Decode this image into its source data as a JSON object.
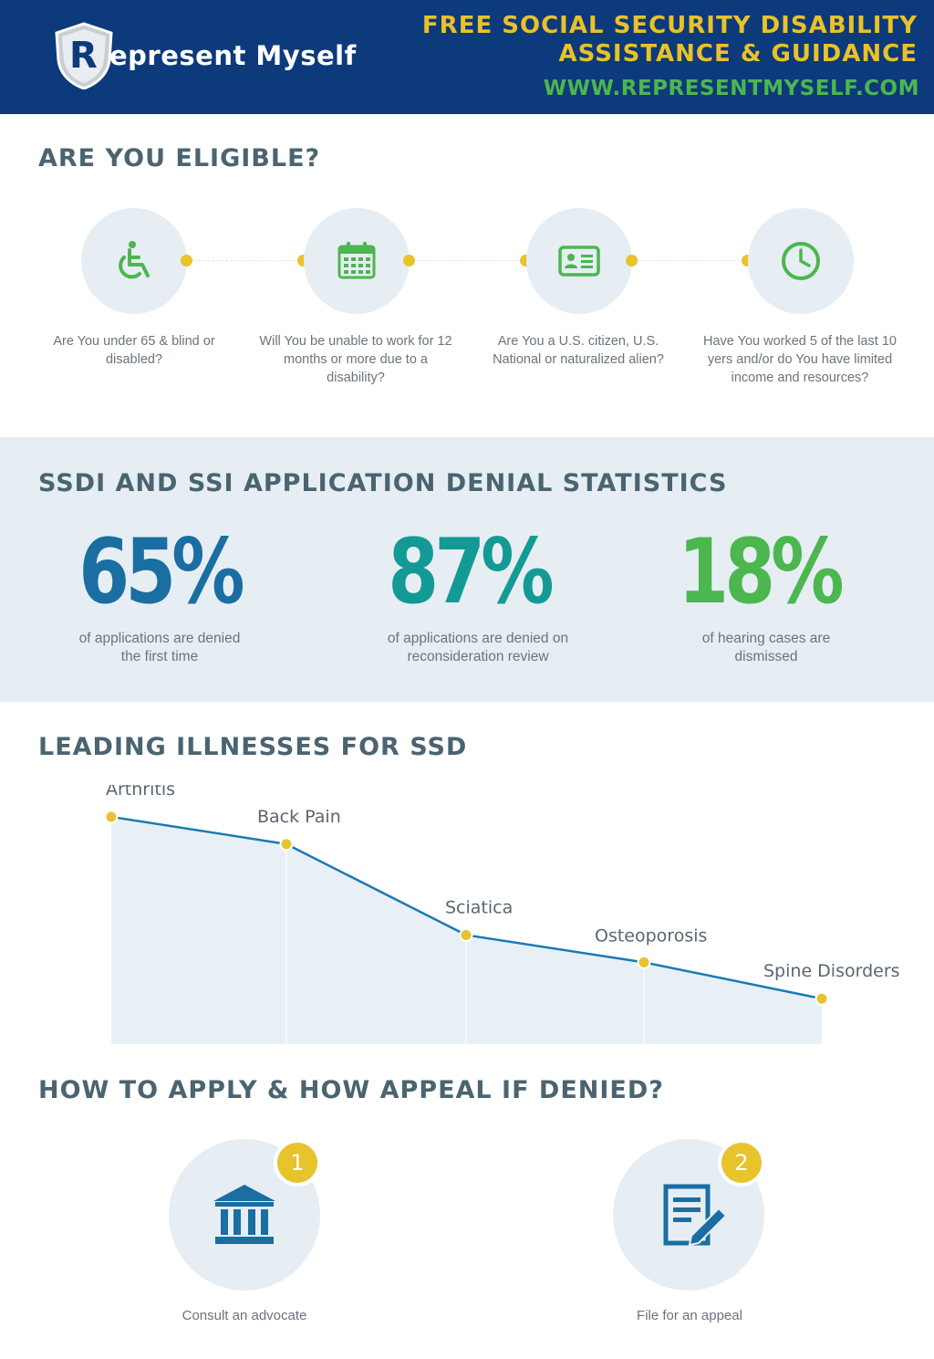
{
  "header": {
    "brand_initial": "R",
    "brand_rest": "epresent Myself",
    "title_line1": "FREE SOCIAL SECURITY DISABILITY",
    "title_line2": "ASSISTANCE & GUIDANCE",
    "url": "WWW.REPRESENTMYSELF.COM",
    "colors": {
      "background": "#0d3a7a",
      "title": "#e9c12a",
      "url": "#4cb64f"
    }
  },
  "eligibility": {
    "title": "ARE YOU ELIGIBLE?",
    "items": [
      {
        "icon": "wheelchair-icon",
        "text": "Are You under 65 & blind or disabled?"
      },
      {
        "icon": "calendar-icon",
        "text": "Will You be unable to work for 12 months or more due to a disability?"
      },
      {
        "icon": "id-card-icon",
        "text": "Are You a U.S. citizen, U.S. National or naturalized alien?"
      },
      {
        "icon": "clock-icon",
        "text": "Have You worked 5 of the last 10 yers and/or do You have limited income and resources?"
      }
    ]
  },
  "stats": {
    "title": "SSDI AND SSI APPLICATION DENIAL STATISTICS",
    "items": [
      {
        "value": "65%",
        "caption_line1": "of applications are denied",
        "caption_line2": "the first time",
        "color": "#1a6ea1"
      },
      {
        "value": "87%",
        "caption_line1": "of applications are denied on",
        "caption_line2": "reconsideration review",
        "color": "#139a94"
      },
      {
        "value": "18%",
        "caption_line1": "of hearing cases are",
        "caption_line2": "dismissed",
        "color": "#4cb64f"
      }
    ]
  },
  "illnesses": {
    "title": "LEADING ILLNESSES FOR SSD"
  },
  "chart_data": {
    "type": "area",
    "title": "LEADING ILLNESSES FOR SSD",
    "categories": [
      "Arthritis",
      "Back Pain",
      "Sciatica",
      "Osteoporosis",
      "Spine Disorders"
    ],
    "values": [
      5,
      4.4,
      2.4,
      1.8,
      1
    ],
    "note_values": "relative ranking, no numeric axis shown",
    "grid": false,
    "colors": {
      "line": "#1a7ab5",
      "fill": "#e8f0f5",
      "point": "#e7c32c"
    }
  },
  "apply": {
    "title": "HOW TO APPLY & HOW APPEAL IF DENIED?",
    "steps": [
      {
        "number": "1",
        "icon": "bank-icon",
        "label": "Consult an advocate"
      },
      {
        "number": "2",
        "icon": "document-edit-icon",
        "label": "File for an appeal"
      }
    ]
  }
}
